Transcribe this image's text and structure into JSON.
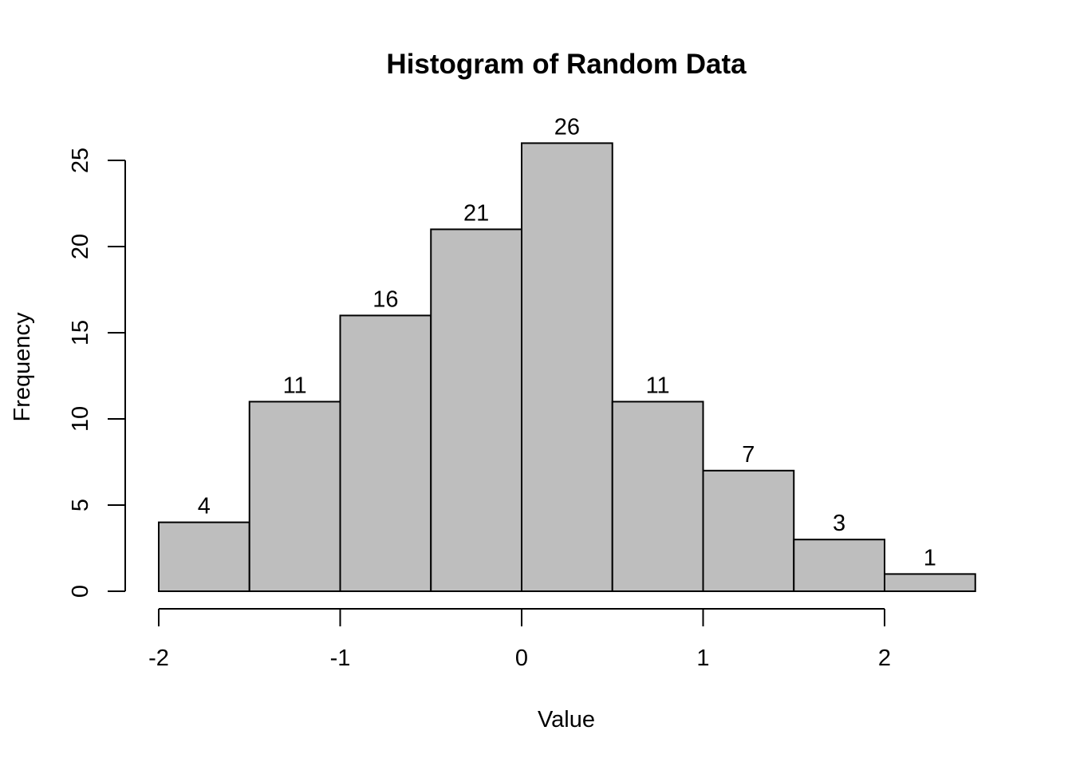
{
  "chart_data": {
    "type": "bar",
    "title": "Histogram of Random Data",
    "xlabel": "Value",
    "ylabel": "Frequency",
    "bins": [
      {
        "start": -2.0,
        "end": -1.5,
        "count": 4
      },
      {
        "start": -1.5,
        "end": -1.0,
        "count": 11
      },
      {
        "start": -1.0,
        "end": -0.5,
        "count": 16
      },
      {
        "start": -0.5,
        "end": 0.0,
        "count": 21
      },
      {
        "start": 0.0,
        "end": 0.5,
        "count": 26
      },
      {
        "start": 0.5,
        "end": 1.0,
        "count": 11
      },
      {
        "start": 1.0,
        "end": 1.5,
        "count": 7
      },
      {
        "start": 1.5,
        "end": 2.0,
        "count": 3
      },
      {
        "start": 2.0,
        "end": 2.5,
        "count": 1
      }
    ],
    "xlim": [
      -2.0,
      2.5
    ],
    "ylim": [
      0,
      26
    ],
    "xticks": [
      "-2",
      "-1",
      "0",
      "1",
      "2"
    ],
    "yticks": [
      "0",
      "5",
      "10",
      "15",
      "20",
      "25"
    ],
    "bar_labels": true,
    "grid": false,
    "colors": {
      "bar_fill": "#bebebe",
      "bar_stroke": "#000000",
      "axis": "#000000",
      "background": "#ffffff"
    }
  }
}
